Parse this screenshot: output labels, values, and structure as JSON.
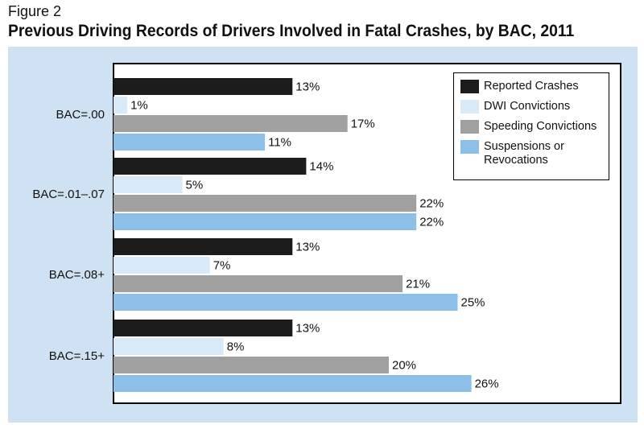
{
  "figure_label": "Figure 2",
  "title": "Previous Driving Records of Drivers Involved in Fatal Crashes, by BAC, 2011",
  "colors": {
    "panel_background": "#cfe2f3",
    "reported_crashes": "#1c1c1c",
    "dwi_convictions": "#d8e9f7",
    "speeding_convictions": "#a0a0a0",
    "suspensions_or_revocations": "#8cc0e8"
  },
  "chart_data": {
    "type": "bar",
    "orientation": "horizontal",
    "title": "Previous Driving Records of Drivers Involved in Fatal Crashes, by BAC, 2011",
    "categories": [
      "BAC=.00",
      "BAC=.01–.07",
      "BAC=.08+",
      "BAC=.15+"
    ],
    "value_unit": "%",
    "xlim": [
      0,
      30
    ],
    "grid": false,
    "legend_position": "top-right",
    "series": [
      {
        "name": "Reported Crashes",
        "values": [
          13,
          14,
          13,
          13
        ],
        "color": "#1c1c1c"
      },
      {
        "name": "DWI Convictions",
        "values": [
          1,
          5,
          7,
          8
        ],
        "color": "#d8e9f7"
      },
      {
        "name": "Speeding Convictions",
        "values": [
          17,
          22,
          21,
          20
        ],
        "color": "#a0a0a0"
      },
      {
        "name": "Suspensions or\nRevocations",
        "values": [
          11,
          22,
          25,
          26
        ],
        "color": "#8cc0e8"
      }
    ]
  }
}
